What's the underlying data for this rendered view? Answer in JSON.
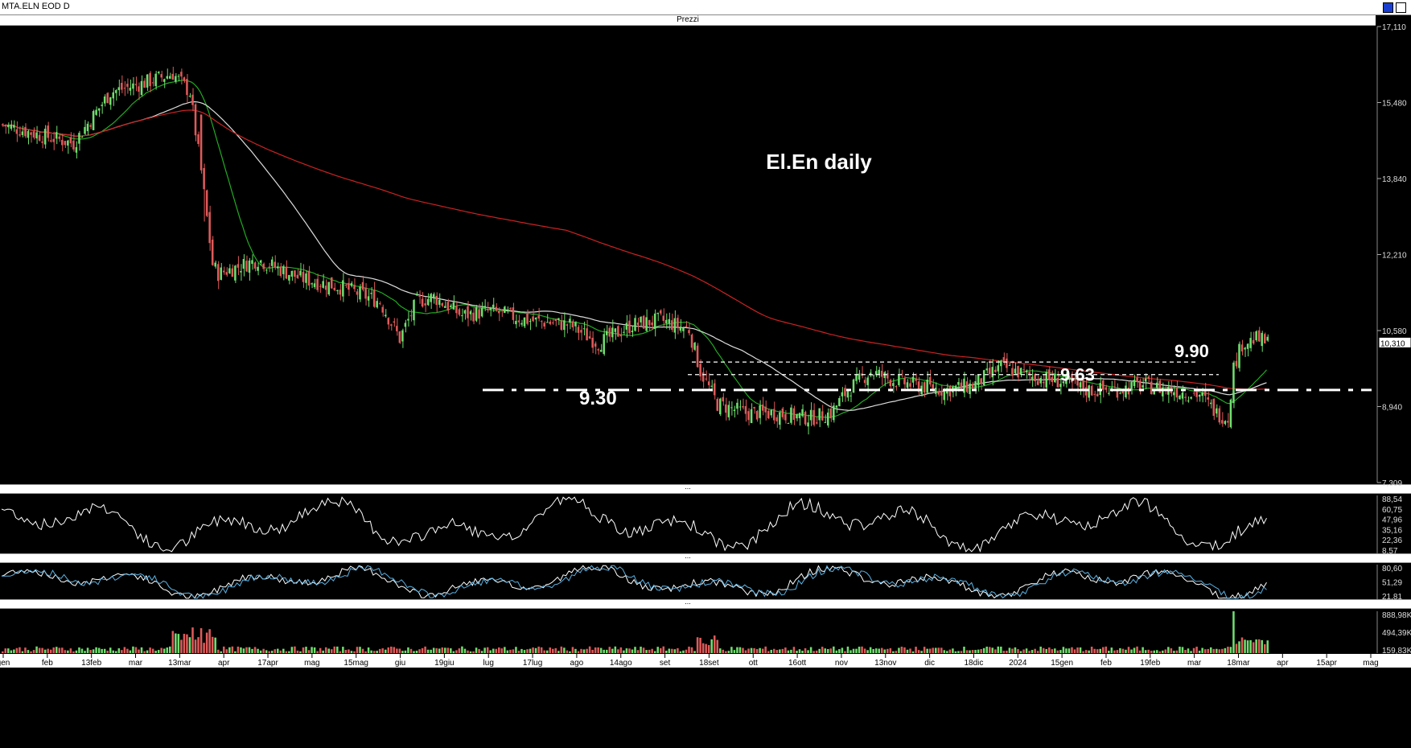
{
  "window": {
    "symbol": "MTA.ELN EOD D",
    "pane_title": "Prezzi",
    "divider_label": "..."
  },
  "colors": {
    "background": "#000000",
    "candle_up": "#6fe06f",
    "candle_down": "#e05a5a",
    "sma_short": "#22aa22",
    "sma_mid": "#dddddd",
    "sma_long": "#cc2222",
    "volume_up": "#6fe06f",
    "volume_down": "#e05a5a",
    "osc_k": "#ffffff",
    "osc_d": "#5ab4e6"
  },
  "chart_data": [
    {
      "type": "candlestick",
      "title": "El.En daily",
      "ylim": [
        7.309,
        17.11
      ],
      "y_ticks": [
        "17,110",
        "15,480",
        "13,840",
        "12,210",
        "10,580",
        "8,940",
        "7,309"
      ],
      "last_price_label": "10,310",
      "x_tick_labels": [
        "gen",
        "feb",
        "13feb",
        "mar",
        "13mar",
        "apr",
        "17apr",
        "mag",
        "15mag",
        "giu",
        "19giu",
        "lug",
        "17lug",
        "ago",
        "14ago",
        "set",
        "18set",
        "ott",
        "16ott",
        "nov",
        "13nov",
        "dic",
        "18dic",
        "2024",
        "15gen",
        "feb",
        "19feb",
        "mar",
        "18mar",
        "apr",
        "15apr",
        "mag"
      ],
      "price_path": [
        [
          0,
          15.0
        ],
        [
          12,
          14.8
        ],
        [
          25,
          14.6
        ],
        [
          38,
          15.7
        ],
        [
          50,
          15.9
        ],
        [
          60,
          16.1
        ],
        [
          66,
          15.7
        ],
        [
          70,
          14.0
        ],
        [
          72,
          13.0
        ],
        [
          74,
          12.0
        ],
        [
          76,
          11.8
        ],
        [
          90,
          12.1
        ],
        [
          105,
          11.7
        ],
        [
          120,
          11.5
        ],
        [
          133,
          11.2
        ],
        [
          140,
          10.4
        ],
        [
          146,
          11.2
        ],
        [
          152,
          11.3
        ],
        [
          162,
          10.9
        ],
        [
          172,
          11.0
        ],
        [
          185,
          10.8
        ],
        [
          200,
          10.7
        ],
        [
          210,
          10.3
        ],
        [
          222,
          10.7
        ],
        [
          232,
          10.8
        ],
        [
          242,
          10.6
        ],
        [
          246,
          9.7
        ],
        [
          252,
          9.0
        ],
        [
          262,
          8.8
        ],
        [
          272,
          8.8
        ],
        [
          285,
          8.7
        ],
        [
          292,
          8.8
        ],
        [
          298,
          9.3
        ],
        [
          306,
          9.7
        ],
        [
          314,
          9.5
        ],
        [
          322,
          9.4
        ],
        [
          332,
          9.3
        ],
        [
          342,
          9.4
        ],
        [
          352,
          9.8
        ],
        [
          362,
          9.6
        ],
        [
          372,
          9.5
        ],
        [
          382,
          9.3
        ],
        [
          392,
          9.3
        ],
        [
          402,
          9.4
        ],
        [
          412,
          9.3
        ],
        [
          422,
          9.2
        ],
        [
          428,
          8.8
        ],
        [
          432,
          8.7
        ],
        [
          434,
          9.8
        ],
        [
          437,
          10.3
        ],
        [
          442,
          10.4
        ],
        [
          446,
          10.31
        ]
      ],
      "horizontal_levels": [
        {
          "label": "9.90",
          "value": 9.9
        },
        {
          "label": "9.63",
          "value": 9.63
        },
        {
          "label": "9.30",
          "value": 9.3
        }
      ],
      "moving_averages": [
        "short",
        "mid",
        "long"
      ]
    },
    {
      "type": "line",
      "name": "oscillator-1",
      "y_ticks": [
        "88,54",
        "60,75",
        "47,96",
        "35,16",
        "22,36",
        "8,57"
      ]
    },
    {
      "type": "line",
      "name": "stochastic",
      "y_ticks": [
        "80,60",
        "51,29",
        "21,81"
      ]
    },
    {
      "type": "bar",
      "name": "volume",
      "y_ticks": [
        "888,98K",
        "494,39K",
        "159,83K"
      ]
    }
  ]
}
